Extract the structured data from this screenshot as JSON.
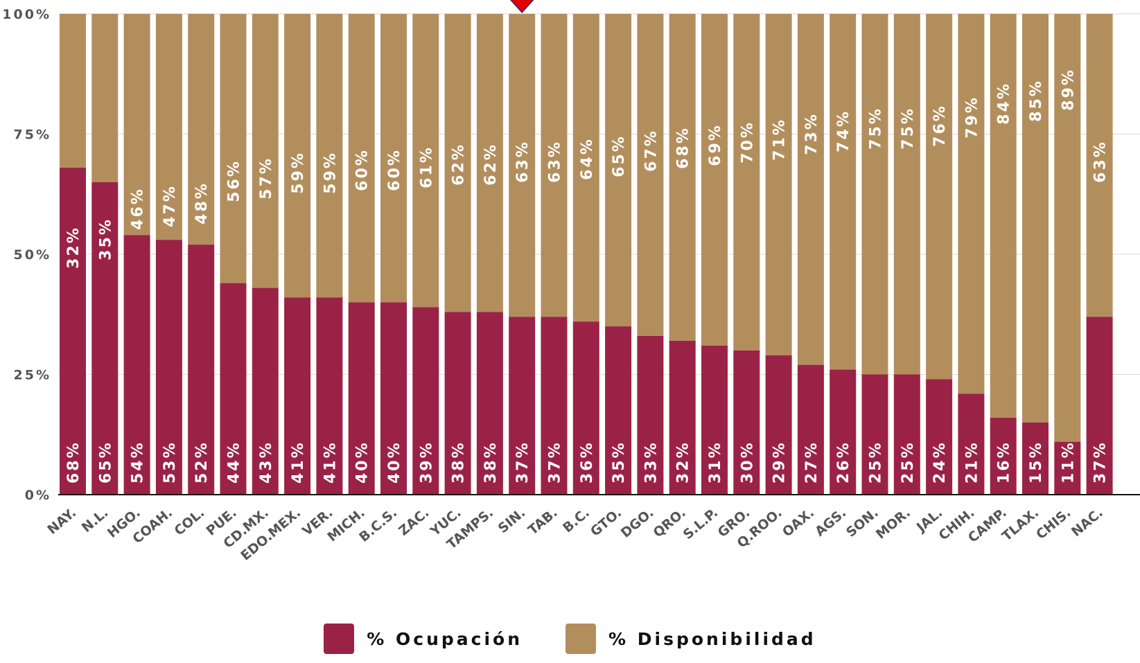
{
  "colors": {
    "ocupacion": "#9B2247",
    "disponibilidad": "#B38E5D",
    "marker": "#E00000"
  },
  "legend": {
    "ocupacion_label": "% Ocupación",
    "disponibilidad_label": "% Disponibilidad"
  },
  "chart_data": {
    "type": "bar",
    "stacked": true,
    "categories": [
      "NAY.",
      "N.L.",
      "HGO.",
      "COAH.",
      "COL.",
      "PUE.",
      "CD.MX.",
      "EDO.MEX.",
      "VER.",
      "MICH.",
      "B.C.S.",
      "ZAC.",
      "YUC.",
      "TAMPS.",
      "SIN.",
      "TAB.",
      "B.C.",
      "GTO.",
      "DGO.",
      "QRO.",
      "S.L.P.",
      "GRO.",
      "Q.ROO.",
      "OAX.",
      "AGS.",
      "SON.",
      "MOR.",
      "JAL.",
      "CHIH.",
      "CAMP.",
      "TLAX.",
      "CHIS.",
      "NAC."
    ],
    "series": [
      {
        "name": "% Ocupación",
        "values": [
          68,
          65,
          54,
          53,
          52,
          44,
          43,
          41,
          41,
          40,
          40,
          39,
          38,
          38,
          37,
          37,
          36,
          35,
          33,
          32,
          31,
          30,
          29,
          27,
          26,
          25,
          25,
          24,
          21,
          16,
          15,
          11,
          37
        ],
        "labels": [
          "68%",
          "65%",
          "54%",
          "53%",
          "52%",
          "44%",
          "43%",
          "41%",
          "41%",
          "40%",
          "40%",
          "39%",
          "38%",
          "38%",
          "37%",
          "37%",
          "36%",
          "35%",
          "33%",
          "32%",
          "31%",
          "30%",
          "29%",
          "27%",
          "26%",
          "25%",
          "25%",
          "24%",
          "21%",
          "16%",
          "15%",
          "11%",
          "37%"
        ]
      },
      {
        "name": "% Disponibilidad",
        "values": [
          32,
          35,
          46,
          47,
          48,
          56,
          57,
          59,
          59,
          60,
          60,
          61,
          62,
          62,
          63,
          63,
          64,
          65,
          67,
          68,
          69,
          70,
          71,
          73,
          74,
          75,
          75,
          76,
          79,
          84,
          85,
          89,
          63
        ],
        "labels": [
          "32%",
          "35%",
          "46%",
          "47%",
          "48%",
          "56%",
          "57%",
          "59%",
          "59%",
          "60%",
          "60%",
          "61%",
          "62%",
          "62%",
          "63%",
          "63%",
          "64%",
          "65%",
          "67%",
          "68%",
          "69%",
          "70%",
          "71%",
          "73%",
          "74%",
          "75%",
          "75%",
          "76%",
          "79%",
          "84%",
          "85%",
          "89%",
          "63%"
        ]
      }
    ],
    "ylim": [
      0,
      100
    ],
    "yticks": [
      "0%",
      "25%",
      "50%",
      "75%",
      "100%"
    ],
    "grid": true,
    "legend_position": "bottom",
    "marker_category": "SIN."
  }
}
